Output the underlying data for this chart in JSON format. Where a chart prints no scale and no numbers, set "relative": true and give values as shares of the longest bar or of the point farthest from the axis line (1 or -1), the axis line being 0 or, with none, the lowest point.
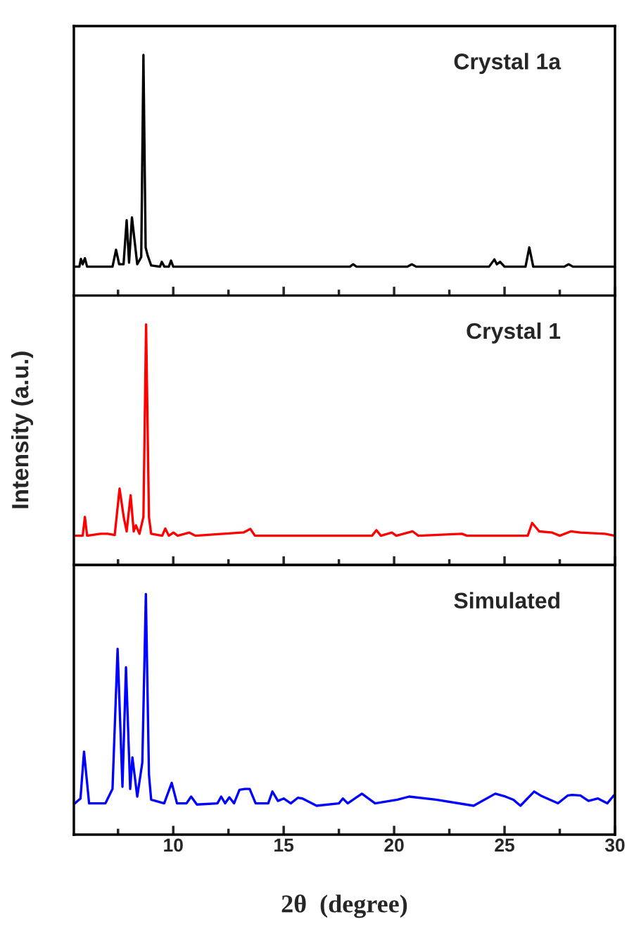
{
  "chart_data": [
    {
      "type": "line",
      "relative": true,
      "tick_labels": false,
      "annotations": [
        "Crystal 1a"
      ],
      "xlim": [
        5.5,
        30
      ],
      "xticks": [
        {
          "value": 7.5,
          "label": null
        },
        10,
        {
          "value": 12.5,
          "label": null
        },
        15,
        {
          "value": 17.5,
          "label": null
        },
        20,
        {
          "value": 22.5,
          "label": null
        },
        25,
        {
          "value": 27.5,
          "label": null
        },
        30
      ],
      "x": [
        5.55,
        5.75,
        5.82,
        5.9,
        6.0,
        6.1,
        7.25,
        7.41,
        7.55,
        7.75,
        7.89,
        8.0,
        8.13,
        8.37,
        8.55,
        8.65,
        8.75,
        8.84,
        9.0,
        9.4,
        9.48,
        9.6,
        9.8,
        9.9,
        10.0,
        12.0,
        14.0,
        16.0,
        18.0,
        18.14,
        18.3,
        20.6,
        20.8,
        21.0,
        24.3,
        24.54,
        24.65,
        24.8,
        25.0,
        25.95,
        26.12,
        26.3,
        27.7,
        27.9,
        28.1,
        30.0
      ],
      "series": [
        {
          "color": "#000000",
          "values": [
            0.12,
            0.12,
            0.152,
            0.13,
            0.155,
            0.12,
            0.12,
            0.19,
            0.13,
            0.13,
            0.313,
            0.137,
            0.325,
            0.13,
            0.16,
            1.0,
            0.2,
            0.167,
            0.125,
            0.12,
            0.14,
            0.12,
            0.12,
            0.145,
            0.12,
            0.12,
            0.12,
            0.12,
            0.12,
            0.13,
            0.12,
            0.12,
            0.13,
            0.12,
            0.12,
            0.15,
            0.13,
            0.14,
            0.12,
            0.12,
            0.2,
            0.12,
            0.12,
            0.13,
            0.12,
            0.12
          ]
        }
      ]
    },
    {
      "type": "line",
      "relative": true,
      "tick_labels": false,
      "annotations": [
        "Crystal 1"
      ],
      "ylabel": "Intensity (a.u.)",
      "xlim": [
        5.5,
        30
      ],
      "xticks": [
        {
          "value": 7.5,
          "label": null
        },
        10,
        {
          "value": 12.5,
          "label": null
        },
        15,
        {
          "value": 17.5,
          "label": null
        },
        20,
        {
          "value": 22.5,
          "label": null
        },
        25,
        {
          "value": 27.5,
          "label": null
        },
        30
      ],
      "x": [
        5.55,
        5.9,
        6.0,
        6.1,
        6.7,
        7.04,
        7.35,
        7.57,
        7.76,
        7.89,
        8.07,
        8.21,
        8.31,
        8.47,
        8.65,
        8.77,
        8.9,
        9.0,
        9.5,
        9.64,
        9.8,
        10.01,
        10.2,
        10.73,
        11.0,
        13.2,
        13.49,
        13.7,
        19.0,
        19.2,
        19.4,
        19.9,
        20.1,
        20.84,
        21.1,
        23.07,
        23.3,
        26.05,
        26.25,
        26.57,
        27.16,
        27.5,
        28.0,
        28.43,
        29.54,
        30.0
      ],
      "series": [
        {
          "color": "#ff0000",
          "values": [
            0.122,
            0.122,
            0.2,
            0.122,
            0.13,
            0.13,
            0.125,
            0.318,
            0.198,
            0.14,
            0.29,
            0.14,
            0.165,
            0.13,
            0.2,
            1.0,
            0.2,
            0.13,
            0.122,
            0.152,
            0.122,
            0.135,
            0.122,
            0.135,
            0.122,
            0.136,
            0.15,
            0.122,
            0.122,
            0.145,
            0.122,
            0.135,
            0.122,
            0.14,
            0.122,
            0.13,
            0.122,
            0.122,
            0.175,
            0.14,
            0.135,
            0.122,
            0.14,
            0.135,
            0.13,
            0.122
          ]
        }
      ]
    },
    {
      "type": "line",
      "relative": true,
      "tick_labels": "x",
      "annotations": [
        "Simulated"
      ],
      "xlabel": "2θ  (degree)",
      "xlim": [
        5.5,
        30
      ],
      "xticks": [
        {
          "value": 7.5,
          "label": null
        },
        10,
        {
          "value": 12.5,
          "label": null
        },
        15,
        {
          "value": 17.5,
          "label": null
        },
        20,
        {
          "value": 22.5,
          "label": null
        },
        25,
        {
          "value": 27.5,
          "label": null
        },
        30
      ],
      "x": [
        5.55,
        5.8,
        5.96,
        6.19,
        6.93,
        7.25,
        7.48,
        7.7,
        7.86,
        8.05,
        8.15,
        8.37,
        8.6,
        8.76,
        8.9,
        9.0,
        9.59,
        9.93,
        10.17,
        10.6,
        10.81,
        11.07,
        12.0,
        12.17,
        12.35,
        12.54,
        12.75,
        13.0,
        13.25,
        13.46,
        13.73,
        14.3,
        14.49,
        14.74,
        15.0,
        15.32,
        15.64,
        15.85,
        16.49,
        17.5,
        17.68,
        17.9,
        18.54,
        19.14,
        20.15,
        20.68,
        21.9,
        23.6,
        24.58,
        24.98,
        25.4,
        25.72,
        26.34,
        26.68,
        27.42,
        27.87,
        28.06,
        28.43,
        28.8,
        29.23,
        29.65,
        29.95
      ],
      "series": [
        {
          "color": "#0000ff",
          "values": [
            0.13,
            0.15,
            0.345,
            0.13,
            0.13,
            0.19,
            0.772,
            0.199,
            0.695,
            0.19,
            0.321,
            0.158,
            0.3,
            1.0,
            0.25,
            0.145,
            0.13,
            0.215,
            0.13,
            0.13,
            0.158,
            0.125,
            0.13,
            0.158,
            0.13,
            0.155,
            0.13,
            0.186,
            0.19,
            0.19,
            0.13,
            0.13,
            0.179,
            0.14,
            0.15,
            0.13,
            0.153,
            0.15,
            0.12,
            0.13,
            0.15,
            0.13,
            0.17,
            0.13,
            0.145,
            0.158,
            0.145,
            0.12,
            0.17,
            0.16,
            0.145,
            0.12,
            0.179,
            0.16,
            0.13,
            0.163,
            0.165,
            0.163,
            0.14,
            0.15,
            0.13,
            0.163
          ]
        }
      ]
    }
  ]
}
